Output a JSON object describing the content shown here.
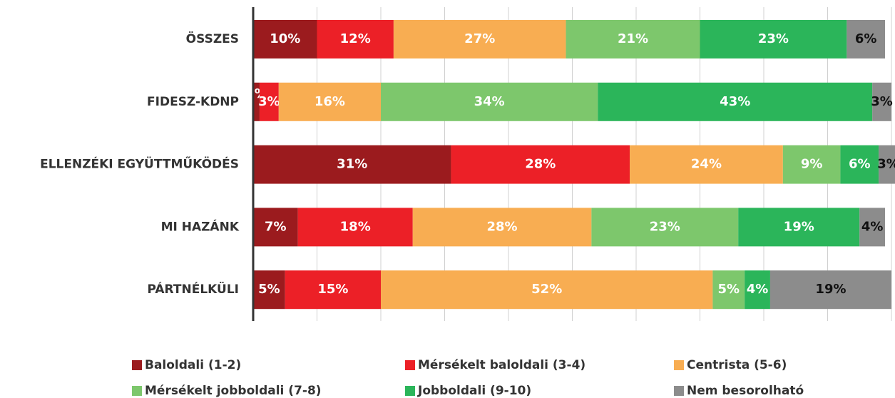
{
  "chart_data": {
    "type": "stacked-bar-horizontal",
    "categories": [
      "ÖSSZES",
      "FIDESZ-KDNP",
      "ELLENZÉKI EGYÜTTMŰKÖDÉS",
      "MI HAZÁNK",
      "PÁRTNÉLKÜLI"
    ],
    "xlim": [
      0,
      100
    ],
    "xticks": [
      0,
      10,
      20,
      30,
      40,
      50,
      60,
      70,
      80,
      90,
      100
    ],
    "grid": true,
    "series": [
      {
        "name": "Baloldali (1-2)",
        "color": "#9b1b1e",
        "values": [
          10,
          1,
          31,
          7,
          5
        ],
        "value_labels": [
          "10%",
          "1%",
          "31%",
          "7%",
          "5%"
        ]
      },
      {
        "name": "Mérsékelt baloldali (3-4)",
        "color": "#ec2027",
        "values": [
          12,
          3,
          28,
          18,
          15
        ],
        "value_labels": [
          "12%",
          "3%",
          "28%",
          "18%",
          "15%"
        ]
      },
      {
        "name": "Centrista (5-6)",
        "color": "#f8ad52",
        "values": [
          27,
          16,
          24,
          28,
          52
        ],
        "value_labels": [
          "27%",
          "16%",
          "24%",
          "28%",
          "52%"
        ]
      },
      {
        "name": "Mérsékelt jobboldali (7-8)",
        "color": "#7dc76c",
        "values": [
          21,
          34,
          9,
          23,
          5
        ],
        "value_labels": [
          "21%",
          "34%",
          "9%",
          "23%",
          "5%"
        ]
      },
      {
        "name": "Jobboldali (9-10)",
        "color": "#2bb55a",
        "values": [
          23,
          43,
          6,
          19,
          4
        ],
        "value_labels": [
          "23%",
          "43%",
          "6%",
          "19%",
          "4%"
        ]
      },
      {
        "name": "Nem besorolható",
        "color": "#8c8c8c",
        "values": [
          6,
          3,
          3,
          4,
          19
        ],
        "value_labels": [
          "6%",
          "3%",
          "3%",
          "4%",
          "19%"
        ]
      }
    ]
  }
}
